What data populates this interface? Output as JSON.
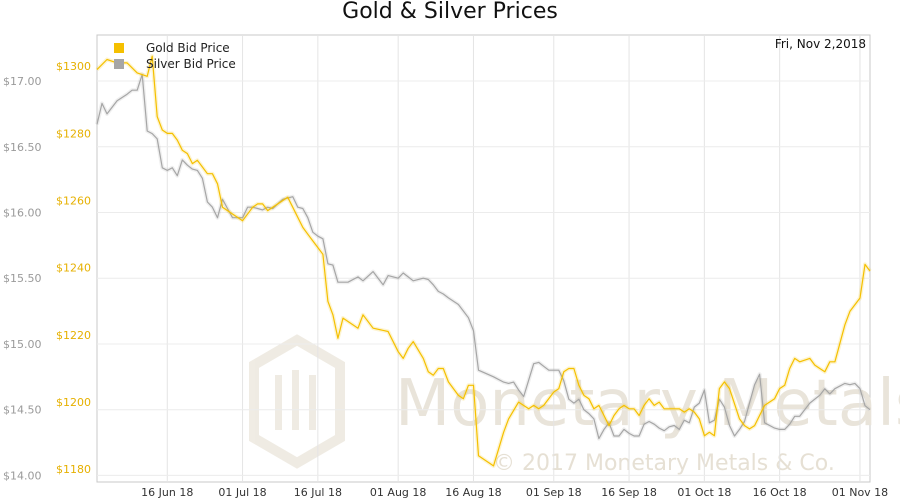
{
  "chart_data": {
    "type": "line",
    "title": "Gold & Silver Prices",
    "date_label": "Fri, Nov 2,2018",
    "x_ticks": [
      "16 Jun 18",
      "01 Jul 18",
      "16 Jul 18",
      "01 Aug 18",
      "16 Aug 18",
      "01 Sep 18",
      "16 Sep 18",
      "01 Oct 18",
      "16 Oct 18",
      "01 Nov 18"
    ],
    "x_range": [
      "2018-06-02",
      "2018-11-03"
    ],
    "left_axis": {
      "series": "Silver Bid Price",
      "range": [
        13.95,
        17.35
      ],
      "ticks": [
        "$14.00",
        "$14.50",
        "$15.00",
        "$15.50",
        "$16.00",
        "$16.50",
        "$17.00"
      ],
      "tick_values": [
        14.0,
        14.5,
        15.0,
        15.5,
        16.0,
        16.5,
        17.0
      ]
    },
    "right_axis": {
      "series": "Gold Bid Price",
      "range": [
        1176.2,
        1309.3
      ],
      "ticks": [
        "$1180",
        "$1200",
        "$1220",
        "$1240",
        "$1260",
        "$1280",
        "$1300"
      ],
      "tick_values": [
        1180,
        1200,
        1220,
        1240,
        1260,
        1280,
        1300
      ]
    },
    "grid": true,
    "legend_position": "top-left",
    "series": [
      {
        "name": "Gold Bid Price",
        "color": "#f5c000",
        "axis": "right",
        "x": [
          "2018-06-02",
          "2018-06-04",
          "2018-06-06",
          "2018-06-08",
          "2018-06-10",
          "2018-06-12",
          "2018-06-13",
          "2018-06-14",
          "2018-06-15",
          "2018-06-16",
          "2018-06-17",
          "2018-06-18",
          "2018-06-19",
          "2018-06-20",
          "2018-06-21",
          "2018-06-22",
          "2018-06-23",
          "2018-06-24",
          "2018-06-25",
          "2018-06-26",
          "2018-06-27",
          "2018-06-28",
          "2018-06-29",
          "2018-07-01",
          "2018-07-03",
          "2018-07-04",
          "2018-07-05",
          "2018-07-06",
          "2018-07-07",
          "2018-07-09",
          "2018-07-10",
          "2018-07-11",
          "2018-07-12",
          "2018-07-13",
          "2018-07-14",
          "2018-07-15",
          "2018-07-16",
          "2018-07-17",
          "2018-07-18",
          "2018-07-19",
          "2018-07-20",
          "2018-07-21",
          "2018-07-22",
          "2018-07-24",
          "2018-07-25",
          "2018-07-27",
          "2018-07-30",
          "2018-08-01",
          "2018-08-02",
          "2018-08-03",
          "2018-08-04",
          "2018-08-06",
          "2018-08-07",
          "2018-08-08",
          "2018-08-09",
          "2018-08-10",
          "2018-08-11",
          "2018-08-12",
          "2018-08-13",
          "2018-08-14",
          "2018-08-15",
          "2018-08-16",
          "2018-08-17",
          "2018-08-20",
          "2018-08-21",
          "2018-08-22",
          "2018-08-23",
          "2018-08-25",
          "2018-08-27",
          "2018-08-28",
          "2018-08-29",
          "2018-08-30",
          "2018-09-01",
          "2018-09-02",
          "2018-09-03",
          "2018-09-04",
          "2018-09-05",
          "2018-09-06",
          "2018-09-07",
          "2018-09-08",
          "2018-09-09",
          "2018-09-10",
          "2018-09-11",
          "2018-09-12",
          "2018-09-13",
          "2018-09-14",
          "2018-09-15",
          "2018-09-16",
          "2018-09-17",
          "2018-09-18",
          "2018-09-19",
          "2018-09-20",
          "2018-09-21",
          "2018-09-22",
          "2018-09-23",
          "2018-09-24",
          "2018-09-25",
          "2018-09-26",
          "2018-09-27",
          "2018-09-28",
          "2018-09-29",
          "2018-09-30",
          "2018-10-01",
          "2018-10-02",
          "2018-10-03",
          "2018-10-04",
          "2018-10-05",
          "2018-10-06",
          "2018-10-08",
          "2018-10-09",
          "2018-10-10",
          "2018-10-11",
          "2018-10-12",
          "2018-10-13",
          "2018-10-15",
          "2018-10-16",
          "2018-10-17",
          "2018-10-18",
          "2018-10-19",
          "2018-10-20",
          "2018-10-22",
          "2018-10-23",
          "2018-10-24",
          "2018-10-25",
          "2018-10-26",
          "2018-10-27",
          "2018-10-29",
          "2018-10-30",
          "2018-11-01",
          "2018-11-02",
          "2018-11-03"
        ],
        "values": [
          1299,
          1302,
          1301,
          1301,
          1298,
          1297,
          1303,
          1285,
          1281,
          1280,
          1280,
          1278,
          1275,
          1274,
          1271,
          1272,
          1270,
          1268,
          1268,
          1265,
          1258,
          1257,
          1256,
          1254,
          1258,
          1259,
          1259,
          1257,
          1258,
          1260,
          1261,
          1258,
          1255,
          1252,
          1250,
          1248,
          1246,
          1244,
          1230,
          1226,
          1219,
          1225,
          1224,
          1222,
          1226,
          1222,
          1221,
          1215,
          1213,
          1216,
          1218,
          1213,
          1209,
          1208,
          1210,
          1210,
          1206,
          1204,
          1202,
          1201,
          1205,
          1205,
          1184,
          1181,
          1186,
          1191,
          1195,
          1200,
          1198,
          1199,
          1198,
          1199,
          1203,
          1204,
          1209,
          1210,
          1210,
          1205,
          1202,
          1201,
          1198,
          1199,
          1196,
          1193,
          1196,
          1198,
          1199,
          1198,
          1198,
          1196,
          1199,
          1201,
          1199,
          1200,
          1198,
          1198,
          1198,
          1198,
          1197,
          1198,
          1197,
          1195,
          1190,
          1191,
          1190,
          1204,
          1206,
          1204,
          1195,
          1193,
          1192,
          1193,
          1196,
          1199,
          1201,
          1204,
          1205,
          1210,
          1213,
          1212,
          1213,
          1211,
          1210,
          1209,
          1212,
          1212,
          1223,
          1227,
          1231,
          1241,
          1239
        ]
      },
      {
        "name": "Silver Bid Price",
        "color": "#a6a6a6",
        "axis": "left",
        "x": [
          "2018-06-02",
          "2018-06-03",
          "2018-06-04",
          "2018-06-06",
          "2018-06-08",
          "2018-06-09",
          "2018-06-10",
          "2018-06-11",
          "2018-06-12",
          "2018-06-13",
          "2018-06-14",
          "2018-06-15",
          "2018-06-16",
          "2018-06-17",
          "2018-06-18",
          "2018-06-19",
          "2018-06-20",
          "2018-06-21",
          "2018-06-22",
          "2018-06-23",
          "2018-06-24",
          "2018-06-25",
          "2018-06-26",
          "2018-06-27",
          "2018-06-28",
          "2018-06-29",
          "2018-07-01",
          "2018-07-02",
          "2018-07-03",
          "2018-07-04",
          "2018-07-05",
          "2018-07-06",
          "2018-07-07",
          "2018-07-09",
          "2018-07-10",
          "2018-07-11",
          "2018-07-12",
          "2018-07-13",
          "2018-07-14",
          "2018-07-15",
          "2018-07-16",
          "2018-07-17",
          "2018-07-18",
          "2018-07-19",
          "2018-07-20",
          "2018-07-22",
          "2018-07-24",
          "2018-07-25",
          "2018-07-27",
          "2018-07-29",
          "2018-07-30",
          "2018-08-01",
          "2018-08-02",
          "2018-08-03",
          "2018-08-04",
          "2018-08-06",
          "2018-08-07",
          "2018-08-08",
          "2018-08-09",
          "2018-08-10",
          "2018-08-11",
          "2018-08-13",
          "2018-08-15",
          "2018-08-16",
          "2018-08-17",
          "2018-08-20",
          "2018-08-22",
          "2018-08-23",
          "2018-08-24",
          "2018-08-25",
          "2018-08-26",
          "2018-08-28",
          "2018-08-29",
          "2018-08-30",
          "2018-08-31",
          "2018-09-02",
          "2018-09-03",
          "2018-09-04",
          "2018-09-05",
          "2018-09-06",
          "2018-09-07",
          "2018-09-08",
          "2018-09-09",
          "2018-09-10",
          "2018-09-11",
          "2018-09-12",
          "2018-09-13",
          "2018-09-14",
          "2018-09-15",
          "2018-09-16",
          "2018-09-17",
          "2018-09-18",
          "2018-09-19",
          "2018-09-20",
          "2018-09-21",
          "2018-09-22",
          "2018-09-23",
          "2018-09-24",
          "2018-09-25",
          "2018-09-26",
          "2018-09-27",
          "2018-09-28",
          "2018-09-29",
          "2018-09-30",
          "2018-10-01",
          "2018-10-02",
          "2018-10-03",
          "2018-10-04",
          "2018-10-05",
          "2018-10-06",
          "2018-10-07",
          "2018-10-08",
          "2018-10-09",
          "2018-10-10",
          "2018-10-11",
          "2018-10-12",
          "2018-10-13",
          "2018-10-15",
          "2018-10-16",
          "2018-10-17",
          "2018-10-18",
          "2018-10-19",
          "2018-10-20",
          "2018-10-22",
          "2018-10-24",
          "2018-10-25",
          "2018-10-26",
          "2018-10-27",
          "2018-10-29",
          "2018-10-30",
          "2018-10-31",
          "2018-11-01",
          "2018-11-02",
          "2018-11-03"
        ],
        "values": [
          16.67,
          16.83,
          16.75,
          16.85,
          16.9,
          16.93,
          16.93,
          17.05,
          16.62,
          16.6,
          16.56,
          16.34,
          16.32,
          16.34,
          16.28,
          16.4,
          16.36,
          16.33,
          16.32,
          16.26,
          16.08,
          16.04,
          15.96,
          16.1,
          16.03,
          15.96,
          15.96,
          16.04,
          16.04,
          16.03,
          16.02,
          16.04,
          16.03,
          16.1,
          16.11,
          16.12,
          16.04,
          16.03,
          15.96,
          15.85,
          15.82,
          15.8,
          15.61,
          15.6,
          15.47,
          15.47,
          15.51,
          15.48,
          15.55,
          15.45,
          15.52,
          15.5,
          15.54,
          15.51,
          15.48,
          15.5,
          15.49,
          15.45,
          15.4,
          15.38,
          15.35,
          15.3,
          15.2,
          15.1,
          14.8,
          14.75,
          14.71,
          14.7,
          14.71,
          14.65,
          14.6,
          14.85,
          14.86,
          14.83,
          14.8,
          14.8,
          14.72,
          14.58,
          14.55,
          14.58,
          14.5,
          14.47,
          14.43,
          14.28,
          14.35,
          14.4,
          14.3,
          14.3,
          14.35,
          14.32,
          14.3,
          14.3,
          14.39,
          14.41,
          14.39,
          14.36,
          14.34,
          14.37,
          14.38,
          14.35,
          14.42,
          14.4,
          14.52,
          14.55,
          14.65,
          14.4,
          14.42,
          14.58,
          14.52,
          14.38,
          14.3,
          14.35,
          14.41,
          14.55,
          14.69,
          14.77,
          14.4,
          14.36,
          14.35,
          14.35,
          14.39,
          14.45,
          14.45,
          14.55,
          14.61,
          14.66,
          14.62,
          14.66,
          14.7,
          14.69,
          14.7,
          14.66,
          14.53,
          14.5
        ]
      }
    ]
  },
  "watermark": {
    "brand": "Monetary Metals",
    "copyright": "© 2017 Monetary Metals & Co."
  }
}
